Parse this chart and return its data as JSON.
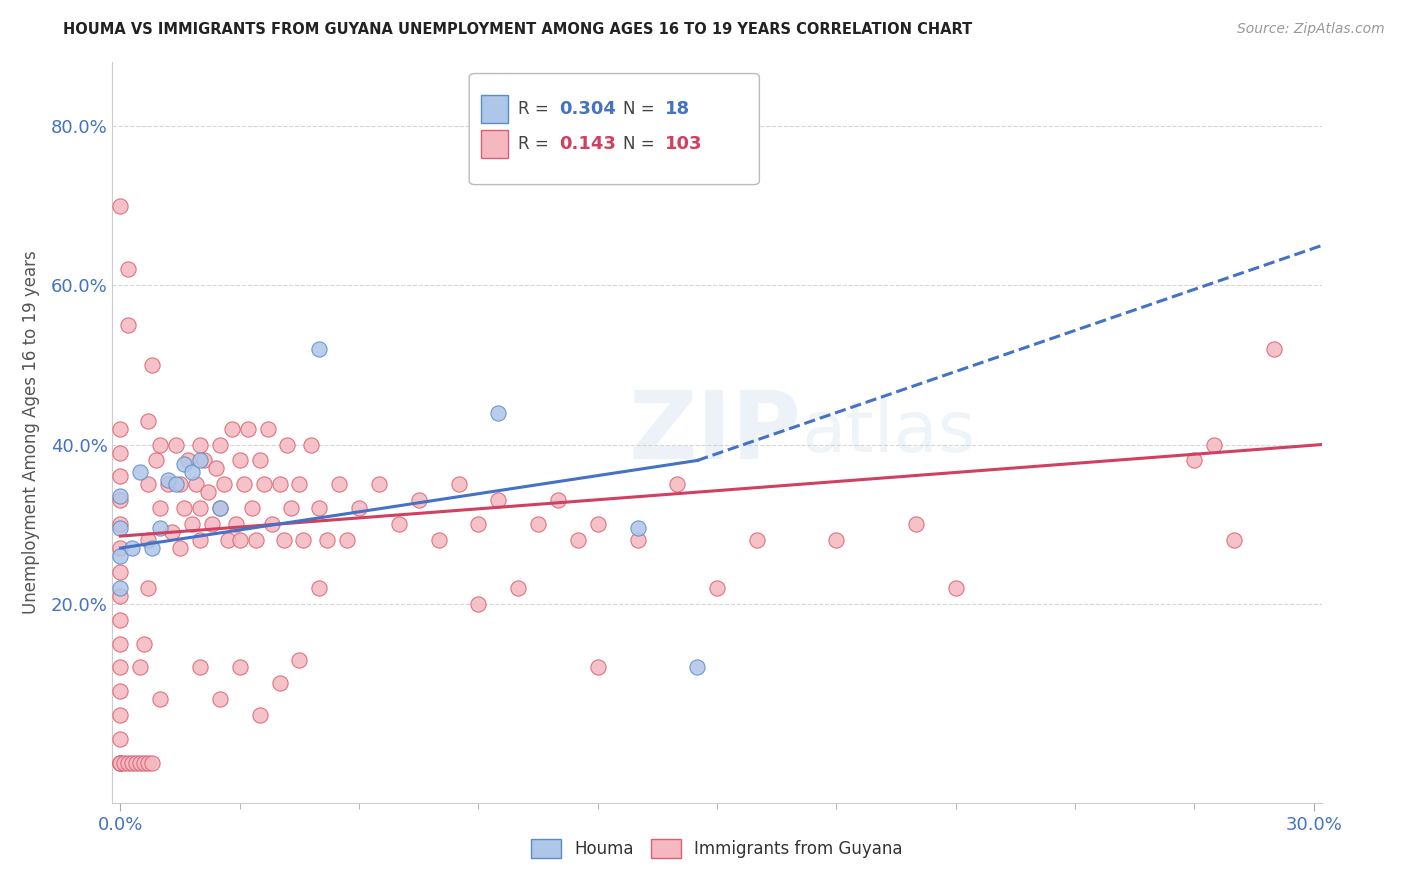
{
  "title": "HOUMA VS IMMIGRANTS FROM GUYANA UNEMPLOYMENT AMONG AGES 16 TO 19 YEARS CORRELATION CHART",
  "source": "Source: ZipAtlas.com",
  "ylabel": "Unemployment Among Ages 16 to 19 years",
  "xlim": [
    -0.002,
    0.302
  ],
  "ylim": [
    -0.05,
    0.88
  ],
  "y_ticks": [
    0.2,
    0.4,
    0.6,
    0.8
  ],
  "y_tick_labels": [
    "20.0%",
    "40.0%",
    "60.0%",
    "80.0%"
  ],
  "houma_color": "#aec6e8",
  "houma_edge": "#5b8cc8",
  "guyana_color": "#f5b8c0",
  "guyana_edge": "#d96070",
  "trend_houma_color": "#4472c4",
  "trend_guyana_color": "#d04060",
  "watermark_zip": "ZIP",
  "watermark_atlas": "atlas",
  "houma_x": [
    0.0,
    0.0,
    0.0,
    0.0,
    0.003,
    0.005,
    0.008,
    0.01,
    0.012,
    0.014,
    0.016,
    0.018,
    0.02,
    0.025,
    0.05,
    0.095,
    0.13,
    0.145
  ],
  "houma_y": [
    0.335,
    0.295,
    0.26,
    0.22,
    0.27,
    0.365,
    0.27,
    0.295,
    0.355,
    0.35,
    0.375,
    0.365,
    0.38,
    0.32,
    0.52,
    0.44,
    0.295,
    0.12
  ],
  "trend_houma_x0": 0.0,
  "trend_houma_y0": 0.27,
  "trend_houma_x1": 0.145,
  "trend_houma_y1": 0.38,
  "trend_houma_xd0": 0.145,
  "trend_houma_yd0": 0.38,
  "trend_houma_xd1": 0.302,
  "trend_houma_yd1": 0.65,
  "trend_guyana_x0": 0.0,
  "trend_guyana_y0": 0.285,
  "trend_guyana_x1": 0.302,
  "trend_guyana_y1": 0.4
}
